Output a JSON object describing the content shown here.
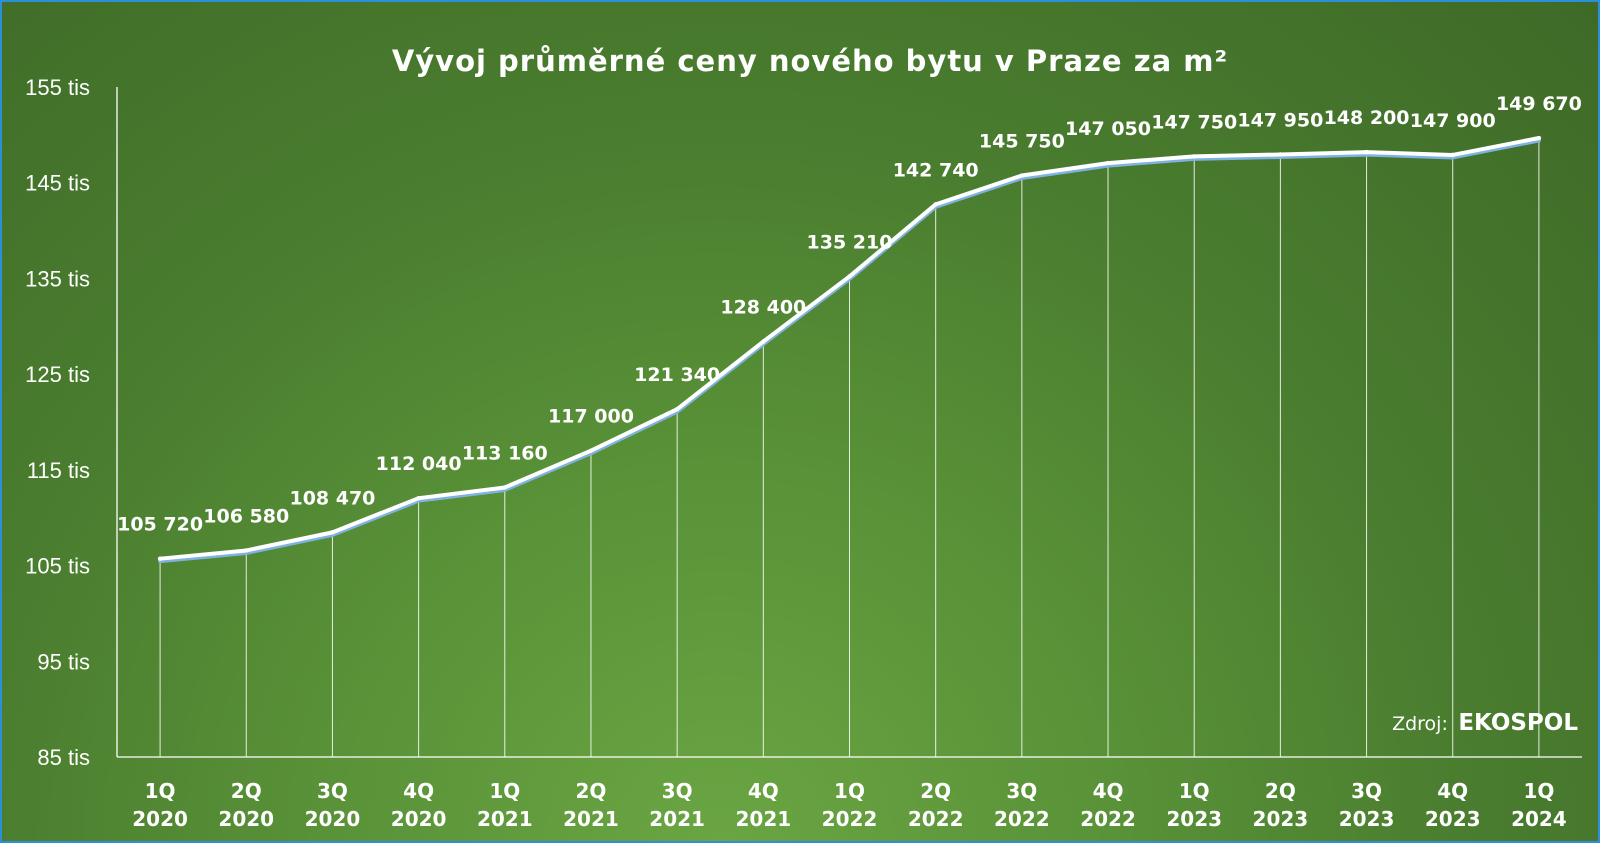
{
  "chart_data": {
    "type": "line",
    "title": "Vývoj průměrné ceny nového bytu v Praze za m²",
    "categories": [
      [
        "1Q",
        "2020"
      ],
      [
        "2Q",
        "2020"
      ],
      [
        "3Q",
        "2020"
      ],
      [
        "4Q",
        "2020"
      ],
      [
        "1Q",
        "2021"
      ],
      [
        "2Q",
        "2021"
      ],
      [
        "3Q",
        "2021"
      ],
      [
        "4Q",
        "2021"
      ],
      [
        "1Q",
        "2022"
      ],
      [
        "2Q",
        "2022"
      ],
      [
        "3Q",
        "2022"
      ],
      [
        "4Q",
        "2022"
      ],
      [
        "1Q",
        "2023"
      ],
      [
        "2Q",
        "2023"
      ],
      [
        "3Q",
        "2023"
      ],
      [
        "4Q",
        "2023"
      ],
      [
        "1Q",
        "2024"
      ]
    ],
    "values": [
      105720,
      106580,
      108470,
      112040,
      113160,
      117000,
      121340,
      128400,
      135210,
      142740,
      145750,
      147050,
      147750,
      147950,
      148200,
      147900,
      149670
    ],
    "data_labels": [
      "105 720",
      "106 580",
      "108 470",
      "112 040",
      "113 160",
      "117 000",
      "121 340",
      "128 400",
      "135 210",
      "142 740",
      "145 750",
      "147 050",
      "147 750",
      "147 950",
      "148 200",
      "147 900",
      "149 670"
    ],
    "ylim": [
      85000,
      155000
    ],
    "yticks": [
      85000,
      95000,
      105000,
      115000,
      125000,
      135000,
      145000,
      155000
    ],
    "ytick_labels": [
      "85 tis",
      "95 tis",
      "105 tis",
      "115 tis",
      "125 tis",
      "135 tis",
      "145 tis",
      "155 tis"
    ],
    "xlabel": "",
    "ylabel": "",
    "drop_lines": true,
    "grid": false,
    "legend": "none",
    "colors": {
      "line": "#ffffff",
      "line_shadow": "#7fb2e0",
      "text": "#ffffff",
      "background": "#5a9338",
      "border": "#2e8fd8"
    }
  },
  "source": {
    "prefix": "Zdroj:",
    "name": "EKOSPOL"
  }
}
